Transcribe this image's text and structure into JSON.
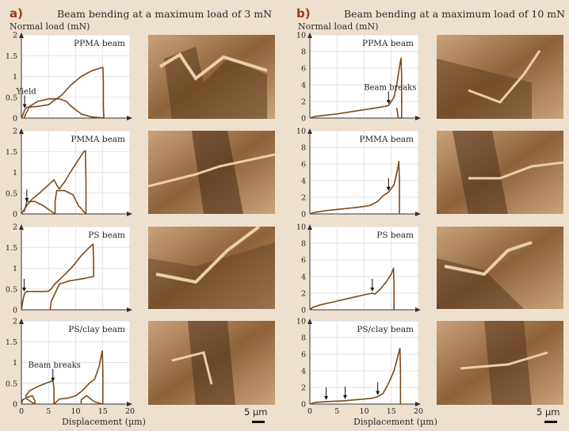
{
  "panels": [
    {
      "label": "a)",
      "title": "Beam bending at a maximum load of 3 mN"
    },
    {
      "label": "b)",
      "title": "Beam bending at a maximum load of 10 mN"
    }
  ],
  "axis_labels": {
    "y": "Normal load (mN)",
    "x": "Displacement (µm)"
  },
  "scale_bar": {
    "label": "5 µm"
  },
  "colors": {
    "curve": "#7a4a1e",
    "background": "#eee0cf",
    "sem_tone": "#8a5a30"
  },
  "chart_data": [
    {
      "type": "line",
      "panel": "a",
      "title": "PPMA beam",
      "ylim": [
        0,
        2
      ],
      "xlim": [
        0,
        20
      ],
      "yticks": [
        0,
        0.5,
        1,
        1.5,
        2
      ],
      "xticks": [
        0,
        5,
        10,
        15,
        20
      ],
      "series": [
        {
          "values": [
            [
              0,
              0
            ],
            [
              0.3,
              0.08
            ],
            [
              0.6,
              0.2
            ],
            [
              1,
              0.26
            ],
            [
              3,
              0.28
            ],
            [
              5,
              0.32
            ],
            [
              6,
              0.42
            ],
            [
              7.5,
              0.56
            ],
            [
              9,
              0.78
            ],
            [
              11,
              1.0
            ],
            [
              13,
              1.14
            ],
            [
              14.5,
              1.2
            ],
            [
              15,
              1.22
            ],
            [
              15.1,
              0.9
            ],
            [
              15.1,
              0.3
            ],
            [
              15.2,
              0
            ],
            [
              12.8,
              0.03
            ],
            [
              11,
              0.1
            ],
            [
              9,
              0.3
            ],
            [
              8.3,
              0.4
            ],
            [
              7,
              0.46
            ],
            [
              5,
              0.46
            ],
            [
              3,
              0.4
            ],
            [
              1.5,
              0.28
            ],
            [
              0.8,
              0.1
            ],
            [
              0.5,
              0
            ]
          ]
        }
      ],
      "annotations": [
        {
          "text": "Yield",
          "x": 0.6,
          "y": 0.2
        }
      ]
    },
    {
      "type": "line",
      "panel": "a",
      "title": "PMMA beam",
      "ylim": [
        0,
        2
      ],
      "xlim": [
        0,
        20
      ],
      "yticks": [
        0,
        0.5,
        1,
        1.5,
        2
      ],
      "xticks": [
        0,
        5,
        10,
        15,
        20
      ],
      "series": [
        {
          "values": [
            [
              0,
              0
            ],
            [
              1,
              0.2
            ],
            [
              2,
              0.36
            ],
            [
              3.5,
              0.52
            ],
            [
              5,
              0.7
            ],
            [
              6,
              0.82
            ],
            [
              6.5,
              0.7
            ],
            [
              7,
              0.6
            ],
            [
              8,
              0.78
            ],
            [
              9,
              1.0
            ],
            [
              10.5,
              1.3
            ],
            [
              11.5,
              1.5
            ],
            [
              11.8,
              1.52
            ],
            [
              11.9,
              0.8
            ],
            [
              11.9,
              0
            ],
            [
              10.5,
              0.2
            ],
            [
              9.5,
              0.46
            ],
            [
              8,
              0.56
            ],
            [
              6.5,
              0.56
            ],
            [
              6.2,
              0.3
            ],
            [
              6.2,
              0
            ],
            [
              4,
              0.2
            ],
            [
              2.5,
              0.3
            ],
            [
              1,
              0.3
            ],
            [
              0.5,
              0.05
            ]
          ]
        }
      ],
      "annotations": [
        {
          "text": "",
          "x": 1,
          "y": 0.25
        }
      ]
    },
    {
      "type": "line",
      "panel": "a",
      "title": "PS beam",
      "ylim": [
        0,
        2
      ],
      "xlim": [
        0,
        20
      ],
      "yticks": [
        0,
        0.5,
        1,
        1.5,
        2
      ],
      "xticks": [
        0,
        5,
        10,
        15,
        20
      ],
      "series": [
        {
          "values": [
            [
              0,
              0
            ],
            [
              0.3,
              0.25
            ],
            [
              0.6,
              0.4
            ],
            [
              1,
              0.44
            ],
            [
              4,
              0.44
            ],
            [
              5,
              0.45
            ],
            [
              5.5,
              0.5
            ],
            [
              6,
              0.6
            ],
            [
              7,
              0.72
            ],
            [
              8,
              0.85
            ],
            [
              9.5,
              1.05
            ],
            [
              11,
              1.3
            ],
            [
              12.5,
              1.5
            ],
            [
              13.2,
              1.58
            ],
            [
              13.3,
              1.2
            ],
            [
              13.3,
              0.8
            ],
            [
              11.5,
              0.75
            ],
            [
              9,
              0.7
            ],
            [
              7,
              0.62
            ],
            [
              5.5,
              0.2
            ],
            [
              5.3,
              0
            ]
          ]
        }
      ],
      "annotations": [
        {
          "text": "",
          "x": 0.5,
          "y": 0.4
        }
      ]
    },
    {
      "type": "line",
      "panel": "a",
      "title": "PS/clay beam",
      "ylim": [
        0,
        2
      ],
      "xlim": [
        0,
        20
      ],
      "yticks": [
        0,
        0.5,
        1,
        1.5,
        2
      ],
      "xticks": [
        0,
        5,
        10,
        15,
        20
      ],
      "series": [
        {
          "values": [
            [
              0,
              0
            ],
            [
              0.2,
              0.1
            ],
            [
              1,
              0.16
            ],
            [
              2,
              0.2
            ],
            [
              2.5,
              0.08
            ],
            [
              2.5,
              0
            ],
            [
              1,
              0.12
            ],
            [
              0.8,
              0.2
            ],
            [
              1.5,
              0.32
            ],
            [
              3,
              0.42
            ],
            [
              4.5,
              0.5
            ],
            [
              5.8,
              0.56
            ],
            [
              6,
              0.4
            ],
            [
              6,
              0
            ],
            [
              7,
              0.12
            ],
            [
              8.5,
              0.14
            ],
            [
              10,
              0.2
            ],
            [
              11,
              0.3
            ],
            [
              12.5,
              0.5
            ],
            [
              13.5,
              0.6
            ],
            [
              14.3,
              0.9
            ],
            [
              14.9,
              1.28
            ],
            [
              15,
              0.8
            ],
            [
              15,
              0
            ],
            [
              13.5,
              0.05
            ],
            [
              12,
              0.2
            ],
            [
              11,
              0.1
            ],
            [
              11,
              0
            ]
          ]
        }
      ],
      "annotations": [
        {
          "text": "Beam breaks",
          "x": 5.8,
          "y": 0.5
        }
      ]
    },
    {
      "type": "line",
      "panel": "b",
      "title": "PPMA beam",
      "ylim": [
        0,
        10
      ],
      "xlim": [
        0,
        20
      ],
      "yticks": [
        0,
        2,
        4,
        6,
        8,
        10
      ],
      "xticks": [
        0,
        5,
        10,
        15,
        20
      ],
      "series": [
        {
          "values": [
            [
              0,
              0
            ],
            [
              1,
              0.2
            ],
            [
              3,
              0.35
            ],
            [
              5,
              0.5
            ],
            [
              7,
              0.7
            ],
            [
              9,
              0.9
            ],
            [
              11,
              1.1
            ],
            [
              13,
              1.3
            ],
            [
              14.5,
              1.5
            ],
            [
              15.5,
              2.5
            ],
            [
              16,
              4
            ],
            [
              16.6,
              6.5
            ],
            [
              16.8,
              7.2
            ],
            [
              16.9,
              5
            ],
            [
              16.9,
              0
            ],
            [
              16.3,
              0
            ],
            [
              16,
              1.2
            ]
          ]
        }
      ],
      "annotations": [
        {
          "text": "Beam breaks",
          "x": 14.5,
          "y": 1.5
        }
      ]
    },
    {
      "type": "line",
      "panel": "b",
      "title": "PMMA beam",
      "ylim": [
        0,
        10
      ],
      "xlim": [
        0,
        20
      ],
      "yticks": [
        0,
        2,
        4,
        6,
        8,
        10
      ],
      "xticks": [
        0,
        5,
        10,
        15,
        20
      ],
      "series": [
        {
          "values": [
            [
              0,
              0
            ],
            [
              1,
              0.2
            ],
            [
              3,
              0.4
            ],
            [
              6,
              0.6
            ],
            [
              9,
              0.8
            ],
            [
              11,
              1.0
            ],
            [
              12.5,
              1.5
            ],
            [
              13.5,
              2.2
            ],
            [
              14.5,
              2.6
            ],
            [
              15.5,
              3.5
            ],
            [
              16.2,
              5.5
            ],
            [
              16.4,
              6.3
            ],
            [
              16.5,
              4
            ],
            [
              16.5,
              0
            ]
          ]
        }
      ],
      "annotations": [
        {
          "text": "",
          "x": 14.5,
          "y": 2.6
        }
      ]
    },
    {
      "type": "line",
      "panel": "b",
      "title": "PS beam",
      "ylim": [
        0,
        10
      ],
      "xlim": [
        0,
        20
      ],
      "yticks": [
        0,
        2,
        4,
        6,
        8,
        10
      ],
      "xticks": [
        0,
        5,
        10,
        15,
        20
      ],
      "series": [
        {
          "values": [
            [
              0,
              0
            ],
            [
              0.5,
              0.3
            ],
            [
              2,
              0.6
            ],
            [
              4,
              0.9
            ],
            [
              6,
              1.2
            ],
            [
              8,
              1.5
            ],
            [
              10,
              1.8
            ],
            [
              11.5,
              2.0
            ],
            [
              12,
              1.9
            ],
            [
              13,
              2.5
            ],
            [
              14,
              3.3
            ],
            [
              15,
              4.3
            ],
            [
              15.4,
              5.0
            ],
            [
              15.5,
              3
            ],
            [
              15.5,
              0
            ]
          ]
        }
      ],
      "annotations": [
        {
          "text": "",
          "x": 11.5,
          "y": 2.0
        }
      ]
    },
    {
      "type": "line",
      "panel": "b",
      "title": "PS/clay beam",
      "ylim": [
        0,
        10
      ],
      "xlim": [
        0,
        20
      ],
      "yticks": [
        0,
        2,
        4,
        6,
        8,
        10
      ],
      "xticks": [
        0,
        5,
        10,
        15,
        20
      ],
      "series": [
        {
          "values": [
            [
              0,
              0
            ],
            [
              1,
              0.2
            ],
            [
              3,
              0.3
            ],
            [
              5,
              0.35
            ],
            [
              6.5,
              0.4
            ],
            [
              8,
              0.5
            ],
            [
              10,
              0.6
            ],
            [
              11.5,
              0.7
            ],
            [
              12.5,
              0.9
            ],
            [
              13.5,
              1.3
            ],
            [
              14.5,
              2.5
            ],
            [
              15.5,
              4
            ],
            [
              16.3,
              6
            ],
            [
              16.6,
              6.7
            ],
            [
              16.7,
              4
            ],
            [
              16.7,
              0
            ]
          ]
        }
      ],
      "annotations": [
        {
          "text": "",
          "x": 3,
          "y": 0.3
        },
        {
          "text": "",
          "x": 6.5,
          "y": 0.4
        },
        {
          "text": "",
          "x": 12.5,
          "y": 0.9
        }
      ]
    }
  ]
}
